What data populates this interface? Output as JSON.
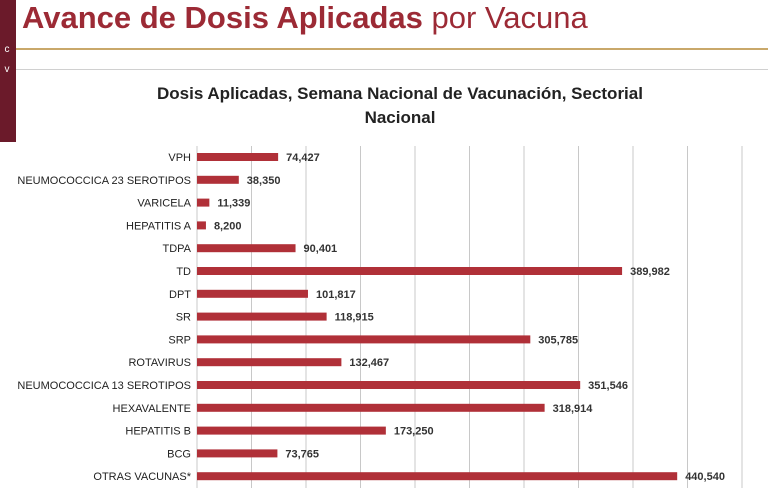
{
  "header": {
    "title_bold": "Avance de Dosis Aplicadas",
    "title_normal": "por Vacuna",
    "side_letters": [
      "c",
      "v"
    ]
  },
  "colors": {
    "bar": "#b03038",
    "header_text": "#9c2a35",
    "accent_line": "#c9a86a",
    "side_strip": "#6b1a2a",
    "grid": "#c8c8c8"
  },
  "chart_data": {
    "type": "bar",
    "orientation": "horizontal",
    "title_line1": "Dosis Aplicadas, Semana Nacional de Vacunación, Sectorial",
    "title_line2": "Nacional",
    "categories": [
      "VPH",
      "NEUMOCOCCICA 23 SEROTIPOS",
      "VARICELA",
      "HEPATITIS A",
      "TDPA",
      "TD",
      "DPT",
      "SR",
      "SRP",
      "ROTAVIRUS",
      "NEUMOCOCCICA 13 SEROTIPOS",
      "HEXAVALENTE",
      "HEPATITIS B",
      "BCG",
      "OTRAS VACUNAS*"
    ],
    "values": [
      74427,
      38350,
      11339,
      8200,
      90401,
      389982,
      101817,
      118915,
      305785,
      132467,
      351546,
      318914,
      173250,
      73765,
      440540
    ],
    "labels": [
      "74,427",
      "38,350",
      "11,339",
      "8,200",
      "90,401",
      "389,982",
      "101,817",
      "118,915",
      "305,785",
      "132,467",
      "351,546",
      "318,914",
      "173,250",
      "73,765",
      "440,540"
    ],
    "xlim": [
      0,
      500000
    ],
    "grid_step": 50000,
    "grid": true
  }
}
